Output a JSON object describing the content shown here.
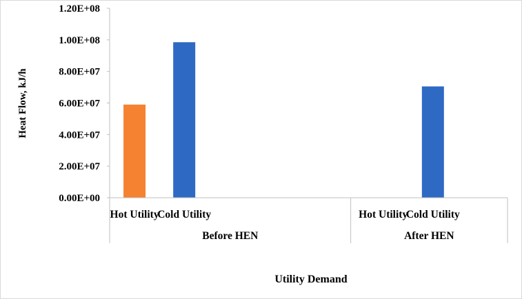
{
  "chart_data": {
    "type": "bar",
    "title": "",
    "xlabel": "Utility Demand",
    "ylabel": "Heat Flow,  kJ/h",
    "ylim": [
      0,
      120000000
    ],
    "y_ticks": [
      0,
      20000000,
      40000000,
      60000000,
      80000000,
      100000000,
      120000000
    ],
    "y_tick_labels": [
      "0.00E+00",
      "2.00E+07",
      "4.00E+07",
      "6.00E+07",
      "8.00E+07",
      "1.00E+08",
      "1.20E+08"
    ],
    "groups": [
      {
        "label": "Before HEN",
        "categories": [
          "Hot Utility",
          "Cold Utility"
        ],
        "values": [
          59000000,
          98500000
        ],
        "colors": [
          "#f58231",
          "#2e6ac4"
        ]
      },
      {
        "label": "After HEN",
        "categories": [
          "Hot Utility",
          "Cold Utility"
        ],
        "values": [
          0,
          70500000
        ],
        "colors": [
          "#f58231",
          "#2e6ac4"
        ]
      }
    ],
    "grid": false,
    "legend": "none"
  }
}
